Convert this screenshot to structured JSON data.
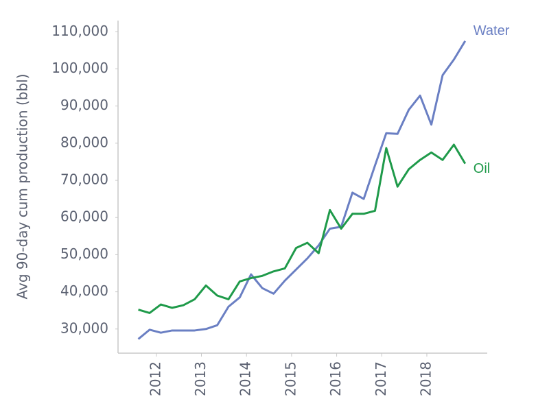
{
  "chart_data": {
    "type": "line",
    "y_label": "Avg 90-day cum production (bbl)",
    "x": [
      2011.6,
      2011.85,
      2012.1,
      2012.35,
      2012.6,
      2012.85,
      2013.1,
      2013.35,
      2013.6,
      2013.85,
      2014.1,
      2014.35,
      2014.6,
      2014.85,
      2015.1,
      2015.35,
      2015.6,
      2015.85,
      2016.1,
      2016.35,
      2016.6,
      2016.85,
      2017.1,
      2017.35,
      2017.6,
      2017.85,
      2018.1,
      2018.35,
      2018.6,
      2018.85
    ],
    "series": [
      {
        "name": "Water",
        "color": "#6a7fc3",
        "values": [
          27300,
          29800,
          29000,
          29600,
          29600,
          29600,
          30000,
          31000,
          36000,
          38500,
          44700,
          41000,
          39500,
          43000,
          46000,
          49000,
          52500,
          57000,
          57500,
          66700,
          65000,
          74000,
          82700,
          82500,
          89000,
          92800,
          85000,
          98300,
          102500,
          107500
        ]
      },
      {
        "name": "Oil",
        "color": "#1f9a4a",
        "values": [
          35200,
          34300,
          36600,
          35700,
          36400,
          38000,
          41700,
          39000,
          38000,
          42800,
          43700,
          44300,
          45500,
          46300,
          51800,
          53200,
          50400,
          62000,
          57000,
          61000,
          61000,
          61800,
          78700,
          68300,
          73000,
          75500,
          77500,
          75500,
          79600,
          74500
        ]
      }
    ],
    "xlim": [
      2011.15,
      2019.34
    ],
    "xticks": [
      2012,
      2013,
      2014,
      2015,
      2016,
      2017,
      2018
    ],
    "ylim": [
      23500,
      113000
    ],
    "yticks": [
      {
        "value": 30000,
        "label": "30,000"
      },
      {
        "value": 40000,
        "label": "40,000"
      },
      {
        "value": 50000,
        "label": "50,000"
      },
      {
        "value": 60000,
        "label": "60,000"
      },
      {
        "value": 70000,
        "label": "70,000"
      },
      {
        "value": 80000,
        "label": "80,000"
      },
      {
        "value": 90000,
        "label": "90,000"
      },
      {
        "value": 100000,
        "label": "100,000"
      },
      {
        "value": 110000,
        "label": "110,000"
      }
    ]
  }
}
